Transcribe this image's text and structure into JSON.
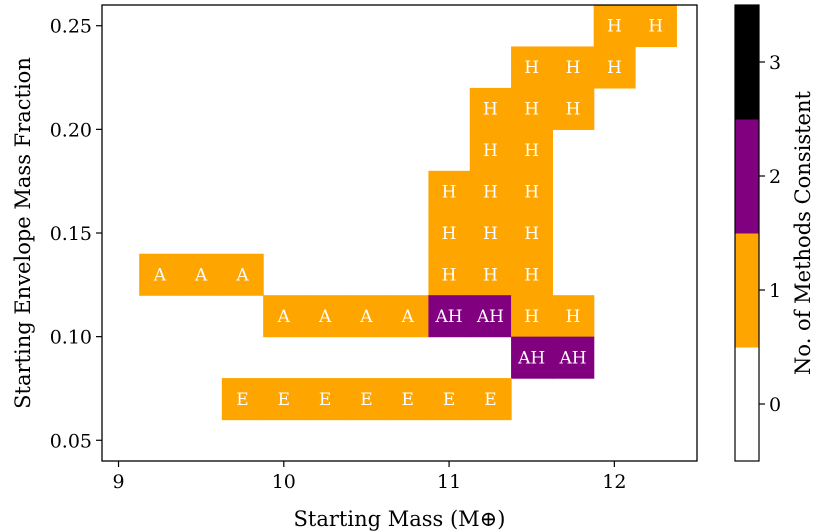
{
  "chart_data": {
    "type": "heatmap",
    "title": "",
    "xlabel": "Starting Mass (M⊕)",
    "ylabel": "Starting Envelope Mass Fraction",
    "xlim": [
      8.9,
      12.5
    ],
    "ylim": [
      0.04,
      0.26
    ],
    "x_ticks": [
      9,
      10,
      11,
      12
    ],
    "y_ticks": [
      0.05,
      0.1,
      0.15,
      0.2,
      0.25
    ],
    "x_tick_labels": [
      "9",
      "10",
      "11",
      "12"
    ],
    "y_tick_labels": [
      "0.05",
      "0.10",
      "0.15",
      "0.20",
      "0.25"
    ],
    "cell_width": 0.25,
    "cell_height": 0.02,
    "colorbar": {
      "label": "No. of Methods Consistent",
      "ticks": [
        0,
        1,
        2,
        3
      ],
      "tick_labels": [
        "0",
        "1",
        "2",
        "3"
      ],
      "colors": [
        "#ffffff",
        "#ffa500",
        "#800080",
        "#000000"
      ]
    },
    "cells": [
      {
        "x": 12.0,
        "y": 0.25,
        "value": 1,
        "label": "H"
      },
      {
        "x": 12.25,
        "y": 0.25,
        "value": 1,
        "label": "H"
      },
      {
        "x": 11.5,
        "y": 0.23,
        "value": 1,
        "label": "H"
      },
      {
        "x": 11.75,
        "y": 0.23,
        "value": 1,
        "label": "H"
      },
      {
        "x": 12.0,
        "y": 0.23,
        "value": 1,
        "label": "H"
      },
      {
        "x": 11.25,
        "y": 0.21,
        "value": 1,
        "label": "H"
      },
      {
        "x": 11.5,
        "y": 0.21,
        "value": 1,
        "label": "H"
      },
      {
        "x": 11.75,
        "y": 0.21,
        "value": 1,
        "label": "H"
      },
      {
        "x": 11.25,
        "y": 0.19,
        "value": 1,
        "label": "H"
      },
      {
        "x": 11.5,
        "y": 0.19,
        "value": 1,
        "label": "H"
      },
      {
        "x": 11.0,
        "y": 0.17,
        "value": 1,
        "label": "H"
      },
      {
        "x": 11.25,
        "y": 0.17,
        "value": 1,
        "label": "H"
      },
      {
        "x": 11.5,
        "y": 0.17,
        "value": 1,
        "label": "H"
      },
      {
        "x": 11.0,
        "y": 0.15,
        "value": 1,
        "label": "H"
      },
      {
        "x": 11.25,
        "y": 0.15,
        "value": 1,
        "label": "H"
      },
      {
        "x": 11.5,
        "y": 0.15,
        "value": 1,
        "label": "H"
      },
      {
        "x": 9.25,
        "y": 0.13,
        "value": 1,
        "label": "A"
      },
      {
        "x": 9.5,
        "y": 0.13,
        "value": 1,
        "label": "A"
      },
      {
        "x": 9.75,
        "y": 0.13,
        "value": 1,
        "label": "A"
      },
      {
        "x": 11.0,
        "y": 0.13,
        "value": 1,
        "label": "H"
      },
      {
        "x": 11.25,
        "y": 0.13,
        "value": 1,
        "label": "H"
      },
      {
        "x": 11.5,
        "y": 0.13,
        "value": 1,
        "label": "H"
      },
      {
        "x": 10.0,
        "y": 0.11,
        "value": 1,
        "label": "A"
      },
      {
        "x": 10.25,
        "y": 0.11,
        "value": 1,
        "label": "A"
      },
      {
        "x": 10.5,
        "y": 0.11,
        "value": 1,
        "label": "A"
      },
      {
        "x": 10.75,
        "y": 0.11,
        "value": 1,
        "label": "A"
      },
      {
        "x": 11.0,
        "y": 0.11,
        "value": 2,
        "label": "AH"
      },
      {
        "x": 11.25,
        "y": 0.11,
        "value": 2,
        "label": "AH"
      },
      {
        "x": 11.5,
        "y": 0.11,
        "value": 1,
        "label": "H"
      },
      {
        "x": 11.75,
        "y": 0.11,
        "value": 1,
        "label": "H"
      },
      {
        "x": 11.5,
        "y": 0.09,
        "value": 2,
        "label": "AH"
      },
      {
        "x": 11.75,
        "y": 0.09,
        "value": 2,
        "label": "AH"
      },
      {
        "x": 9.75,
        "y": 0.07,
        "value": 1,
        "label": "E"
      },
      {
        "x": 10.0,
        "y": 0.07,
        "value": 1,
        "label": "E"
      },
      {
        "x": 10.25,
        "y": 0.07,
        "value": 1,
        "label": "E"
      },
      {
        "x": 10.5,
        "y": 0.07,
        "value": 1,
        "label": "E"
      },
      {
        "x": 10.75,
        "y": 0.07,
        "value": 1,
        "label": "E"
      },
      {
        "x": 11.0,
        "y": 0.07,
        "value": 1,
        "label": "E"
      },
      {
        "x": 11.25,
        "y": 0.07,
        "value": 1,
        "label": "E"
      }
    ]
  }
}
